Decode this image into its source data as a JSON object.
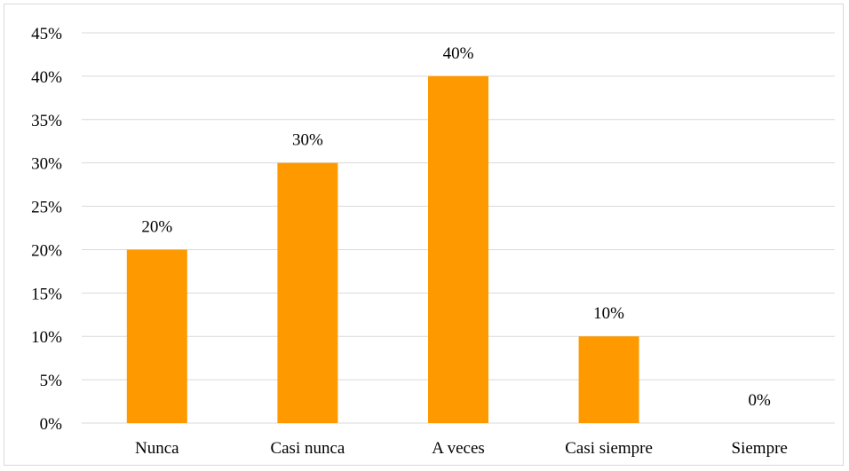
{
  "chart_data": {
    "type": "bar",
    "categories": [
      "Nunca",
      "Casi nunca",
      "A veces",
      "Casi siempre",
      "Siempre"
    ],
    "values": [
      20,
      30,
      40,
      10,
      0
    ],
    "value_labels": [
      "20%",
      "30%",
      "40%",
      "10%",
      "0%"
    ],
    "ylim": [
      0,
      45
    ],
    "ytick_step": 5,
    "ytick_labels": [
      "0%",
      "5%",
      "10%",
      "15%",
      "20%",
      "25%",
      "30%",
      "35%",
      "40%",
      "45%"
    ],
    "bar_color": "#FF9900",
    "grid": true,
    "legend": "none",
    "title": "",
    "xlabel": "",
    "ylabel": ""
  }
}
